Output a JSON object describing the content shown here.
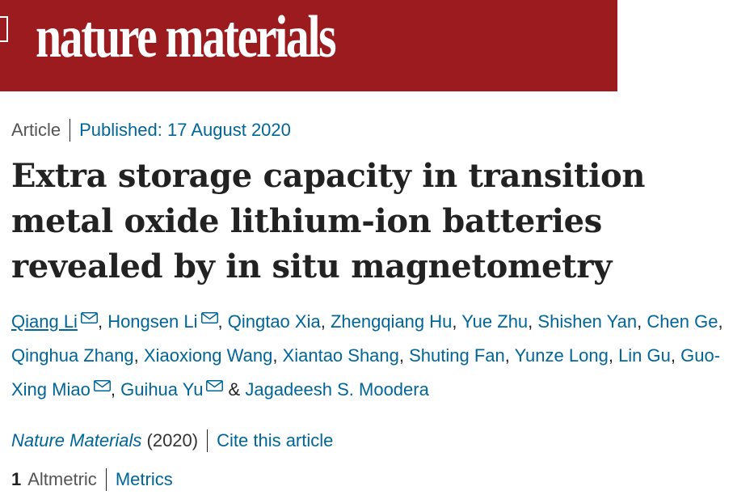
{
  "header": {
    "logo_text": "nature materials",
    "brand_color": "#9b1b1f"
  },
  "meta": {
    "article_type": "Article",
    "published": "Published: 17 August 2020"
  },
  "article": {
    "title": "Extra storage capacity in transition metal oxide lithium-ion batteries revealed by in situ magnetometry"
  },
  "authors": [
    {
      "name": "Qiang Li",
      "mail": true,
      "sep": ", "
    },
    {
      "name": "Hongsen Li",
      "mail": true,
      "sep": ", "
    },
    {
      "name": "Qingtao Xia",
      "mail": false,
      "sep": ", "
    },
    {
      "name": "Zhengqiang Hu",
      "mail": false,
      "sep": ", "
    },
    {
      "name": "Yue Zhu",
      "mail": false,
      "sep": ", "
    },
    {
      "name": "Shishen Yan",
      "mail": false,
      "sep": ", "
    },
    {
      "name": "Chen Ge",
      "mail": false,
      "sep": ", "
    },
    {
      "name": "Qinghua Zhang",
      "mail": false,
      "sep": ", "
    },
    {
      "name": "Xiaoxiong Wang",
      "mail": false,
      "sep": ", "
    },
    {
      "name": "Xiantao Shang",
      "mail": false,
      "sep": ", "
    },
    {
      "name": "Shuting Fan",
      "mail": false,
      "sep": ", "
    },
    {
      "name": "Yunze Long",
      "mail": false,
      "sep": ", "
    },
    {
      "name": "Lin Gu",
      "mail": false,
      "sep": ", "
    },
    {
      "name": "Guo-Xing Miao",
      "mail": true,
      "sep": ", "
    },
    {
      "name": "Guihua Yu",
      "mail": true,
      "sep": " & "
    },
    {
      "name": "Jagadeesh S. Moodera",
      "mail": false,
      "sep": ""
    }
  ],
  "citation": {
    "journal": "Nature Materials",
    "year": " (2020)",
    "cite_link": "Cite this article"
  },
  "metrics": {
    "altmetric_count": "1",
    "altmetric_label": "Altmetric",
    "metrics_link": "Metrics"
  }
}
